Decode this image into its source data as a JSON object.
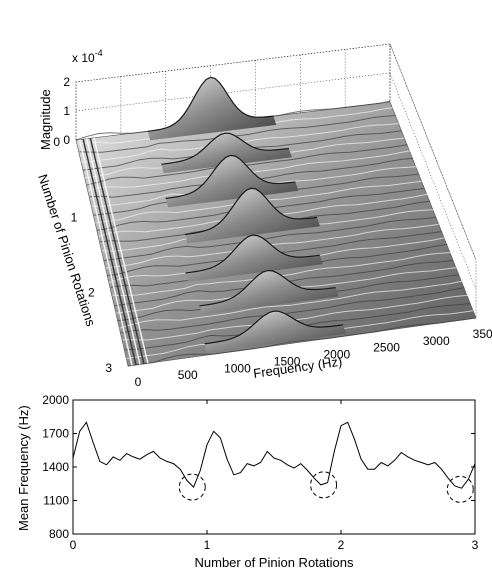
{
  "chart_data": [
    {
      "type": "surface",
      "zlabel": "Magnitude",
      "zscale": "x 10",
      "zscale_exp": "-4",
      "zticks": [
        "0",
        "1",
        "2"
      ],
      "zlim": [
        0,
        2
      ],
      "xlabel": "Frequency (Hz)",
      "xticks": [
        "0",
        "500",
        "1000",
        "1500",
        "2000",
        "2500",
        "3000",
        "3500"
      ],
      "xlim": [
        0,
        3500
      ],
      "ylabel": "Number of Pinion Rotations",
      "yticks": [
        "0",
        "1",
        "2",
        "3"
      ],
      "ylim": [
        0,
        3
      ],
      "grid": true,
      "colormap": "grayscale",
      "peaks": [
        {
          "rotation": 0.0,
          "frequency": 1500,
          "magnitude": 1.6
        },
        {
          "rotation": 0.45,
          "frequency": 1550,
          "magnitude": 0.8
        },
        {
          "rotation": 0.9,
          "frequency": 1500,
          "magnitude": 1.2
        },
        {
          "rotation": 1.4,
          "frequency": 1600,
          "magnitude": 1.3
        },
        {
          "rotation": 1.9,
          "frequency": 1500,
          "magnitude": 1.0
        },
        {
          "rotation": 2.35,
          "frequency": 1550,
          "magnitude": 0.9
        },
        {
          "rotation": 2.85,
          "frequency": 1500,
          "magnitude": 0.8
        }
      ]
    },
    {
      "type": "line",
      "xlabel": "Number of Pinion Rotations",
      "ylabel": "Mean Frequency (Hz)",
      "xlim": [
        0,
        3
      ],
      "ylim": [
        800,
        2000
      ],
      "xticks": [
        "0",
        "1",
        "2",
        "3"
      ],
      "yticks": [
        "800",
        "1100",
        "1400",
        "1700",
        "2000"
      ],
      "grid": false,
      "series": [
        {
          "x": [
            0.0,
            0.05,
            0.1,
            0.15,
            0.2,
            0.25,
            0.3,
            0.35,
            0.4,
            0.45,
            0.5,
            0.55,
            0.6,
            0.65,
            0.7,
            0.75,
            0.8,
            0.85,
            0.9,
            0.95,
            1.0,
            1.05,
            1.1,
            1.15,
            1.2,
            1.25,
            1.3,
            1.35,
            1.4,
            1.45,
            1.5,
            1.55,
            1.6,
            1.65,
            1.7,
            1.75,
            1.8,
            1.85,
            1.9,
            1.95,
            2.0,
            2.05,
            2.1,
            2.15,
            2.2,
            2.25,
            2.3,
            2.35,
            2.4,
            2.45,
            2.5,
            2.55,
            2.6,
            2.65,
            2.7,
            2.75,
            2.8,
            2.85,
            2.9,
            2.95,
            3.0
          ],
          "y": [
            1480,
            1720,
            1800,
            1620,
            1450,
            1420,
            1490,
            1460,
            1520,
            1490,
            1470,
            1510,
            1540,
            1480,
            1450,
            1430,
            1380,
            1280,
            1220,
            1370,
            1600,
            1720,
            1660,
            1470,
            1330,
            1350,
            1430,
            1410,
            1440,
            1540,
            1480,
            1460,
            1420,
            1390,
            1430,
            1370,
            1300,
            1240,
            1260,
            1540,
            1770,
            1800,
            1650,
            1470,
            1380,
            1380,
            1440,
            1410,
            1460,
            1530,
            1490,
            1460,
            1440,
            1420,
            1440,
            1380,
            1300,
            1230,
            1210,
            1290,
            1430
          ]
        }
      ],
      "annotations": [
        {
          "shape": "dashed-circle",
          "x": 0.89,
          "y": 1220
        },
        {
          "shape": "dashed-circle",
          "x": 1.87,
          "y": 1240
        },
        {
          "shape": "dashed-circle",
          "x": 2.89,
          "y": 1200
        }
      ]
    }
  ]
}
